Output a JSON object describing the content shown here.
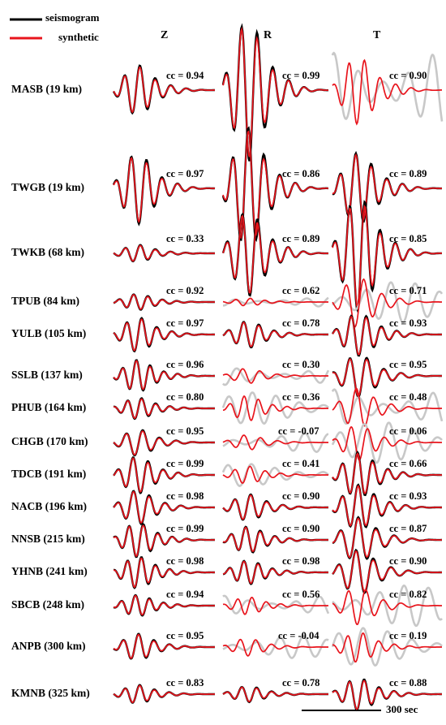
{
  "legend": [
    {
      "label": "seismogram",
      "color": "#000000"
    },
    {
      "label": "synthetic",
      "color": "#e8141c"
    }
  ],
  "colors": {
    "observed": "#000000",
    "synthetic": "#e8141c",
    "rejected_gray": "#c8c8c8",
    "dark_gray": "#7a7a7a"
  },
  "components": [
    "Z",
    "R",
    "T"
  ],
  "scale_bar": {
    "label": "300 sec",
    "seconds": 300
  },
  "chart_data": {
    "type": "waveform-grid",
    "title": "",
    "components": [
      "Z",
      "R",
      "T"
    ],
    "stations": [
      {
        "label": "MASB (19 km)",
        "station": "MASB",
        "distance_km": 19,
        "cc": {
          "Z": "cc = 0.94",
          "R": "cc = 0.99",
          "T": "cc = 0.90"
        },
        "amp": {
          "Z": 0.35,
          "R": 1.0,
          "T": 0.5
        },
        "obs_gray": {
          "Z": false,
          "R": false,
          "T": true
        }
      },
      {
        "label": "TWGB  (19 km)",
        "station": "TWGB",
        "distance_km": 19,
        "cc": {
          "Z": "cc = 0.97",
          "R": "cc = 0.86",
          "T": "cc = 0.89"
        },
        "amp": {
          "Z": 0.5,
          "R": 0.85,
          "T": 0.5
        },
        "obs_gray": {
          "Z": false,
          "R": false,
          "T": false
        }
      },
      {
        "label": "TWKB (68 km)",
        "station": "TWKB",
        "distance_km": 68,
        "cc": {
          "Z": "cc = 0.33",
          "R": "cc = 0.89",
          "T": "cc = 0.85"
        },
        "amp": {
          "Z": 0.12,
          "R": 0.6,
          "T": 0.8
        },
        "obs_gray": {
          "Z": false,
          "R": false,
          "T": false
        }
      },
      {
        "label": "TPUB (84 km)",
        "station": "TPUB",
        "distance_km": 84,
        "cc": {
          "Z": "cc = 0.92",
          "R": "cc = 0.62",
          "T": "cc = 0.71"
        },
        "amp": {
          "Z": 0.3,
          "R": 0.15,
          "T": 1.0
        },
        "obs_gray": {
          "Z": false,
          "R": true,
          "T": true
        }
      },
      {
        "label": "YULB (105 km)",
        "station": "YULB",
        "distance_km": 105,
        "cc": {
          "Z": "cc = 0.97",
          "R": "cc = 0.78",
          "T": "cc = 0.93"
        },
        "amp": {
          "Z": 0.65,
          "R": 0.5,
          "T": 0.8
        },
        "obs_gray": {
          "Z": false,
          "R": false,
          "T": false
        }
      },
      {
        "label": "SSLB (137 km)",
        "station": "SSLB",
        "distance_km": 137,
        "cc": {
          "Z": "cc = 0.96",
          "R": "cc = 0.30",
          "T": "cc = 0.95"
        },
        "amp": {
          "Z": 0.6,
          "R": 0.3,
          "T": 0.8
        },
        "obs_gray": {
          "Z": false,
          "R": true,
          "T": false
        }
      },
      {
        "label": "PHUB (164 km)",
        "station": "PHUB",
        "distance_km": 164,
        "cc": {
          "Z": "cc = 0.80",
          "R": "cc = 0.36",
          "T": "cc = 0.48"
        },
        "amp": {
          "Z": 0.4,
          "R": 0.5,
          "T": 0.8
        },
        "obs_gray": {
          "Z": false,
          "R": true,
          "T": true
        }
      },
      {
        "label": "CHGB  (170 km)",
        "station": "CHGB",
        "distance_km": 170,
        "cc": {
          "Z": "cc = 0.95",
          "R": "cc = -0.07",
          "T": "cc = 0.06"
        },
        "amp": {
          "Z": 0.5,
          "R": 0.3,
          "T": 0.7
        },
        "obs_gray": {
          "Z": false,
          "R": true,
          "T": true
        }
      },
      {
        "label": "TDCB  (191 km)",
        "station": "TDCB",
        "distance_km": 191,
        "cc": {
          "Z": "cc = 0.99",
          "R": "cc = 0.41",
          "T": "cc = 0.66"
        },
        "amp": {
          "Z": 0.7,
          "R": 0.35,
          "T": 0.85
        },
        "obs_gray": {
          "Z": false,
          "R": true,
          "T": false
        }
      },
      {
        "label": "NACB (196 km)",
        "station": "NACB",
        "distance_km": 196,
        "cc": {
          "Z": "cc = 0.98",
          "R": "cc = 0.90",
          "T": "cc = 0.93"
        },
        "amp": {
          "Z": 0.65,
          "R": 0.5,
          "T": 0.85
        },
        "obs_gray": {
          "Z": false,
          "R": false,
          "T": false
        }
      },
      {
        "label": "NNSB (215 km)",
        "station": "NNSB",
        "distance_km": 215,
        "cc": {
          "Z": "cc = 0.99",
          "R": "cc = 0.90",
          "T": "cc = 0.87"
        },
        "amp": {
          "Z": 0.65,
          "R": 0.5,
          "T": 0.85
        },
        "obs_gray": {
          "Z": false,
          "R": false,
          "T": false
        }
      },
      {
        "label": "YHNB (241 km)",
        "station": "YHNB",
        "distance_km": 241,
        "cc": {
          "Z": "cc = 0.98",
          "R": "cc = 0.98",
          "T": "cc = 0.90"
        },
        "amp": {
          "Z": 0.6,
          "R": 0.45,
          "T": 0.85
        },
        "obs_gray": {
          "Z": false,
          "R": false,
          "T": false
        }
      },
      {
        "label": "SBCB (248 km)",
        "station": "SBCB",
        "distance_km": 248,
        "cc": {
          "Z": "cc = 0.94",
          "R": "cc = 0.56",
          "T": "cc = 0.82"
        },
        "amp": {
          "Z": 0.4,
          "R": 0.35,
          "T": 0.75
        },
        "obs_gray": {
          "Z": false,
          "R": true,
          "T": true
        }
      },
      {
        "label": "ANPB (300 km)",
        "station": "ANPB",
        "distance_km": 300,
        "cc": {
          "Z": "cc = 0.95",
          "R": "cc = -0.04",
          "T": "cc = 0.19"
        },
        "amp": {
          "Z": 0.5,
          "R": 0.35,
          "T": 0.6
        },
        "obs_gray": {
          "Z": false,
          "R": true,
          "T": true
        }
      },
      {
        "label": "KMNB (325 km)",
        "station": "KMNB",
        "distance_km": 325,
        "cc": {
          "Z": "cc = 0.83",
          "R": "cc = 0.78",
          "T": "cc = 0.88"
        },
        "amp": {
          "Z": 0.35,
          "R": 0.3,
          "T": 0.6
        },
        "obs_gray": {
          "Z": false,
          "R": false,
          "T": false
        }
      }
    ]
  }
}
